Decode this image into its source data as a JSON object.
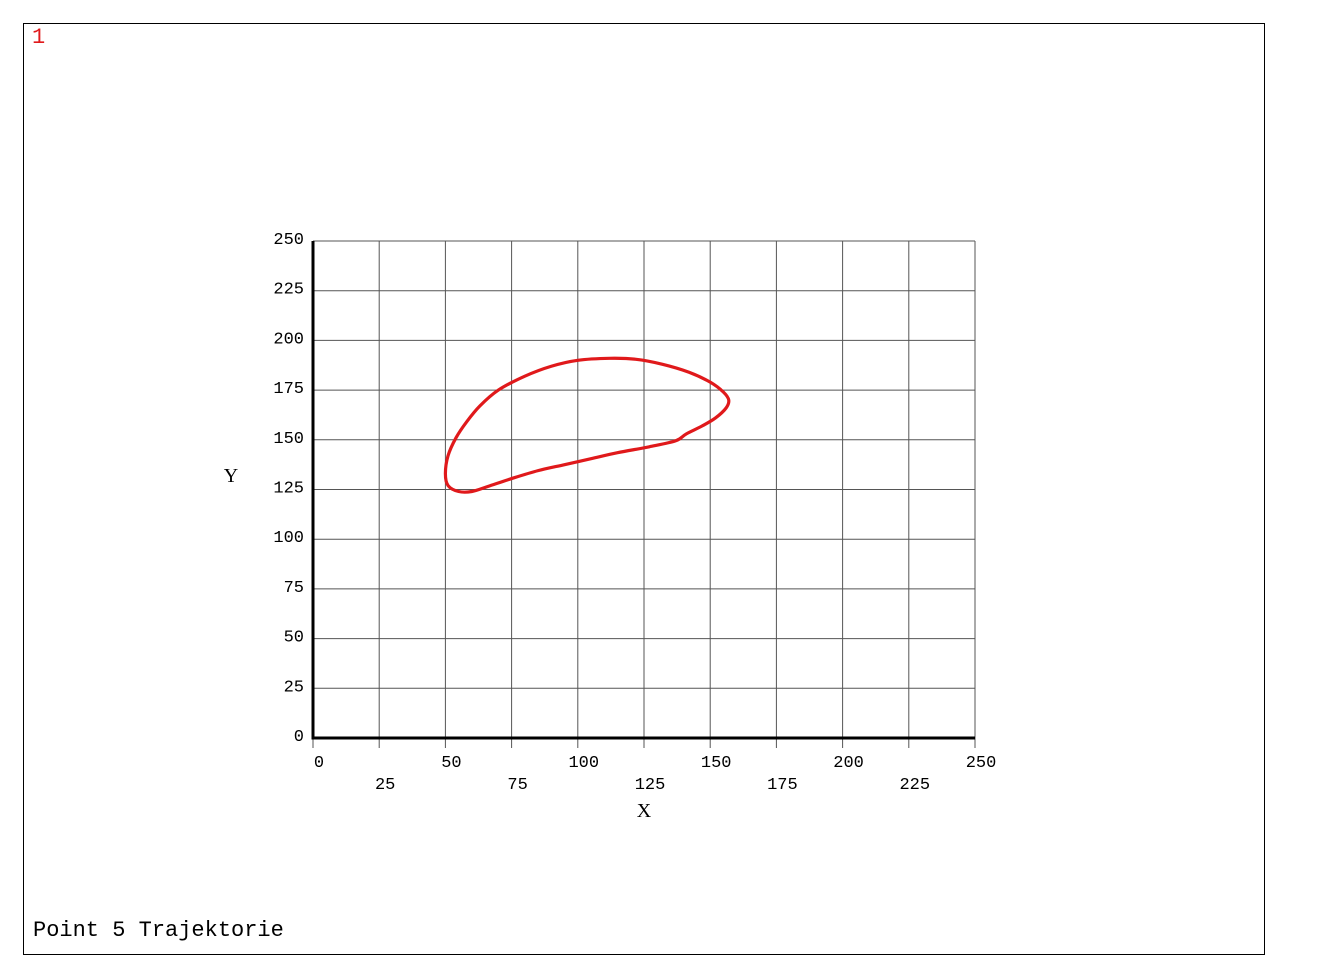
{
  "window": {
    "number": "1",
    "number_color": "#e0191b",
    "caption": "Point 5 Trajektorie"
  },
  "chart_data": {
    "type": "line",
    "title": "",
    "xlabel": "X",
    "ylabel": "Y",
    "xlim": [
      0,
      250
    ],
    "ylim": [
      0,
      250
    ],
    "xticks": [
      0,
      25,
      50,
      75,
      100,
      125,
      150,
      175,
      200,
      225,
      250
    ],
    "yticks": [
      0,
      25,
      50,
      75,
      100,
      125,
      150,
      175,
      200,
      225,
      250
    ],
    "grid": true,
    "legend": "none",
    "series": [
      {
        "color": "#e0191b",
        "closed": true,
        "x": [
          137,
          127,
          115,
          105,
          95,
          85,
          75,
          66,
          60,
          55,
          51,
          50,
          51,
          54,
          58,
          63,
          70,
          80,
          90,
          100,
          112,
          122,
          132,
          142,
          150,
          155,
          157,
          156,
          152,
          147,
          141
        ],
        "y": [
          149.5,
          146.5,
          143.5,
          140.5,
          137.5,
          134.5,
          130.5,
          126.5,
          124,
          124,
          127,
          133,
          142,
          151,
          159,
          167,
          175,
          182,
          187,
          190,
          191,
          190.5,
          188,
          184,
          179,
          174,
          170,
          166,
          161,
          157,
          153
        ]
      }
    ]
  }
}
